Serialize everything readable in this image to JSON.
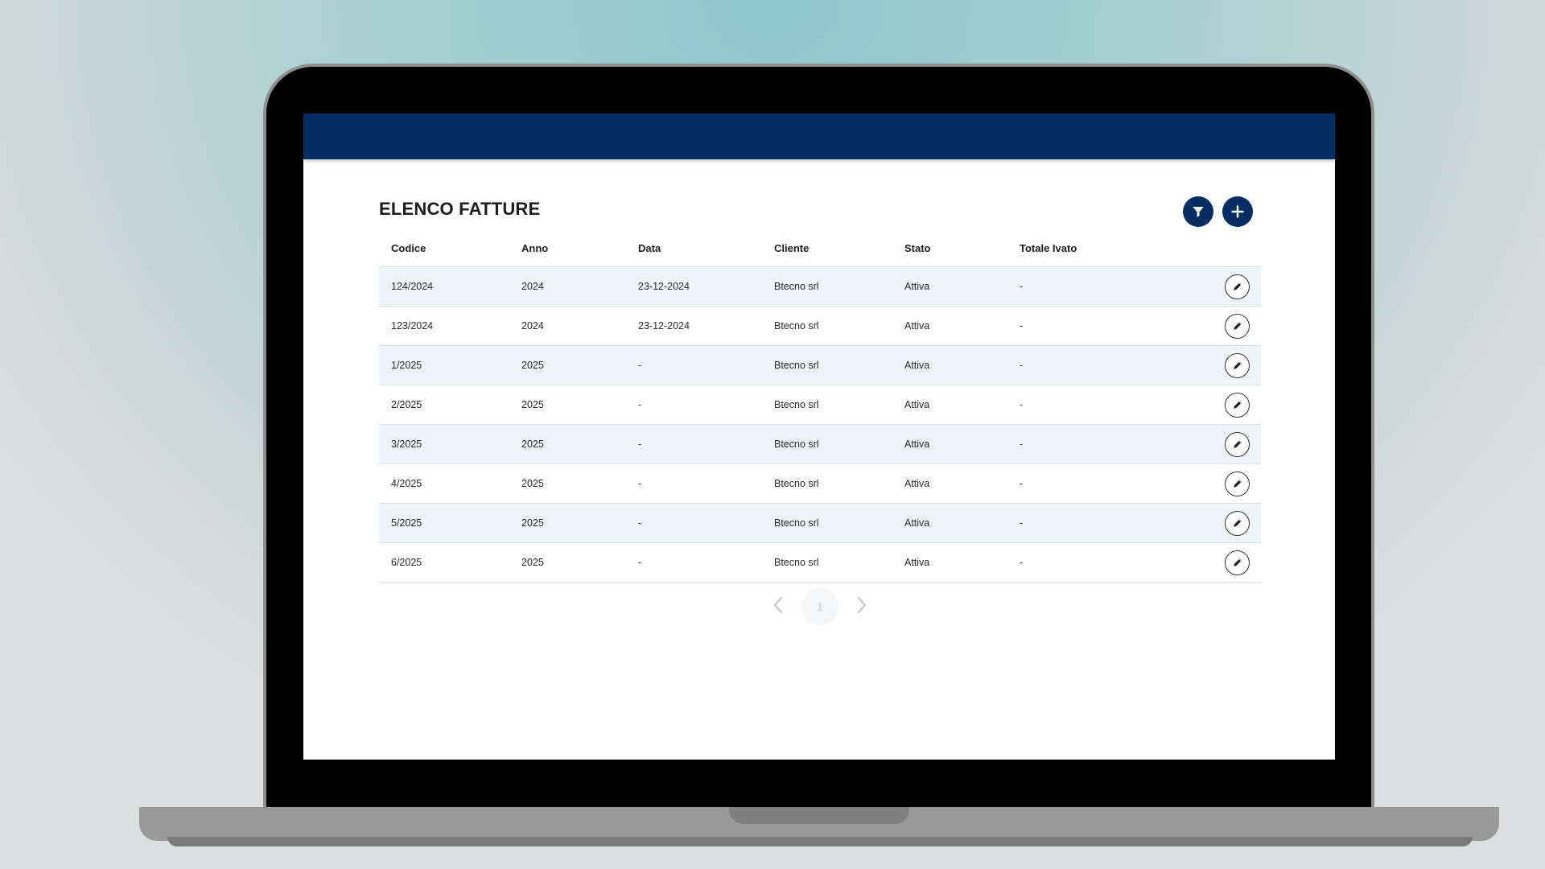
{
  "page": {
    "title": "ELENCO FATTURE"
  },
  "icons": {
    "filter": "filter-icon",
    "add": "plus-icon",
    "edit": "pencil-icon",
    "prev": "chevron-left-icon",
    "next": "chevron-right-icon"
  },
  "colors": {
    "brand": "#032d63",
    "row_alt": "#edf5f8",
    "pager_disabled": "#c4cbd0"
  },
  "table": {
    "columns": [
      "Codice",
      "Anno",
      "Data",
      "Cliente",
      "Stato",
      "Totale Ivato"
    ],
    "rows": [
      [
        "124/2024",
        "2024",
        "23-12-2024",
        "Btecno srl",
        "Attiva",
        "-"
      ],
      [
        "123/2024",
        "2024",
        "23-12-2024",
        "Btecno srl",
        "Attiva",
        "-"
      ],
      [
        "1/2025",
        "2025",
        "-",
        "Btecno srl",
        "Attiva",
        "-"
      ],
      [
        "2/2025",
        "2025",
        "-",
        "Btecno srl",
        "Attiva",
        "-"
      ],
      [
        "3/2025",
        "2025",
        "-",
        "Btecno srl",
        "Attiva",
        "-"
      ],
      [
        "4/2025",
        "2025",
        "-",
        "Btecno srl",
        "Attiva",
        "-"
      ],
      [
        "5/2025",
        "2025",
        "-",
        "Btecno srl",
        "Attiva",
        "-"
      ],
      [
        "6/2025",
        "2025",
        "-",
        "Btecno srl",
        "Attiva",
        "-"
      ]
    ]
  },
  "pagination": {
    "current_page": "1"
  }
}
